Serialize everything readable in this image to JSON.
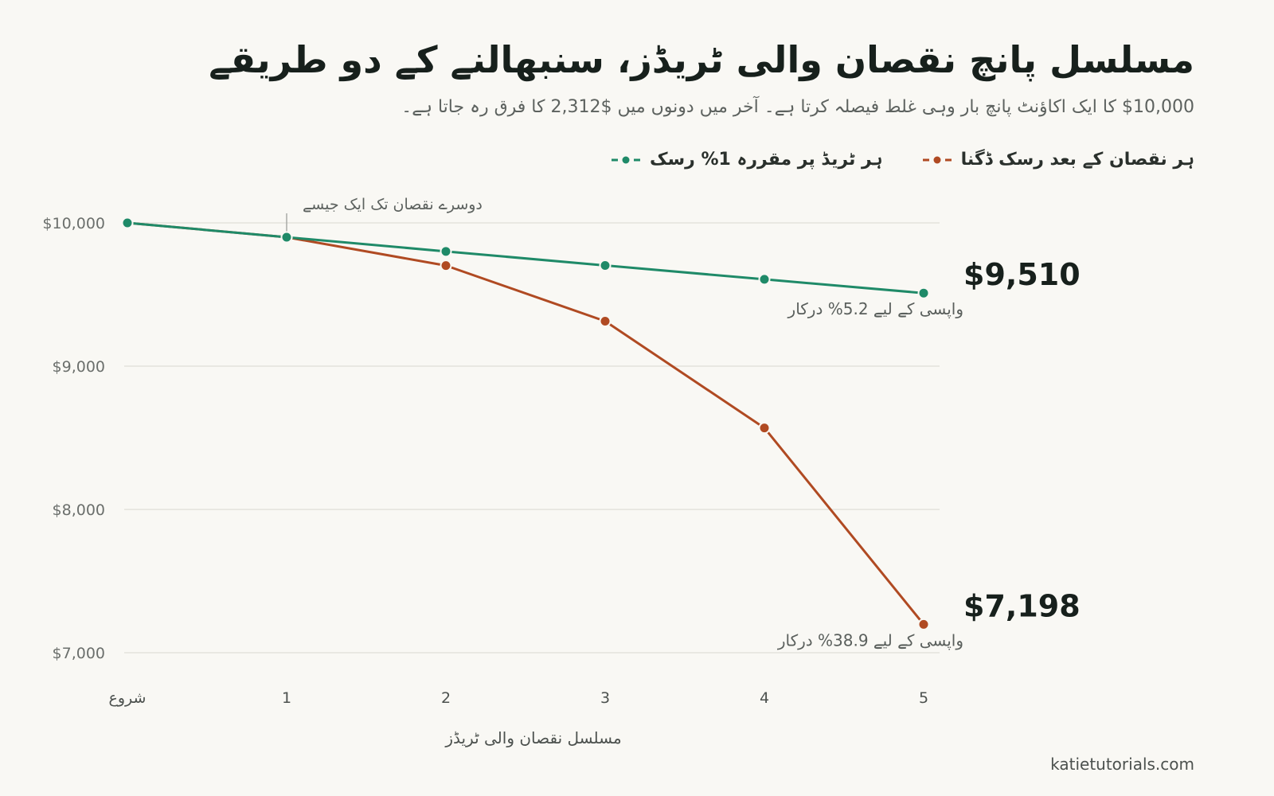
{
  "header": {
    "title": "مسلسل پانچ نقصان والی ٹریڈز، سنبھالنے کے دو طریقے",
    "subtitle": "$10,000 کا ایک اکاؤنٹ پانچ بار وہی غلط فیصلہ کرتا ہے۔ آخر میں دونوں میں $2,312 کا فرق رہ جاتا ہے۔"
  },
  "footer": {
    "credit": "katietutorials.com"
  },
  "colors": {
    "green": "#1f8a68",
    "orange": "#b04a22",
    "grid": "#e4e2dc"
  },
  "chart_data": {
    "type": "line",
    "title": "مسلسل پانچ نقصان والی ٹریڈز، سنبھالنے کے دو طریقے",
    "xlabel": "مسلسل نقصان والی ٹریڈز",
    "x": [
      0,
      1,
      2,
      3,
      4,
      5
    ],
    "x_tick_labels": [
      "شروع",
      "1",
      "2",
      "3",
      "4",
      "5"
    ],
    "ylim": [
      7000,
      10000
    ],
    "y_ticks": [
      7000,
      8000,
      9000,
      10000
    ],
    "y_tick_labels": [
      "$7,000",
      "$8,000",
      "$9,000",
      "$10,000"
    ],
    "grid": true,
    "legend_position": "top-right",
    "series": [
      {
        "name": "ہر ٹریڈ پر مقررہ 1% رسک",
        "color": "#1f8a68",
        "values": [
          10000,
          9900,
          9801,
          9703,
          9606,
          9510
        ],
        "end_label": "$9,510",
        "end_note": "واپسی کے لیے 5.2% درکار"
      },
      {
        "name": "ہر نقصان کے بعد رسک ڈگنا",
        "color": "#b04a22",
        "values": [
          10000,
          9900,
          9702,
          9314,
          8569,
          7198
        ],
        "end_label": "$7,198",
        "end_note": "واپسی کے لیے 38.9% درکار"
      }
    ],
    "annotations": [
      {
        "x": 1,
        "text": "دوسرے نقصان تک ایک جیسے"
      }
    ]
  }
}
